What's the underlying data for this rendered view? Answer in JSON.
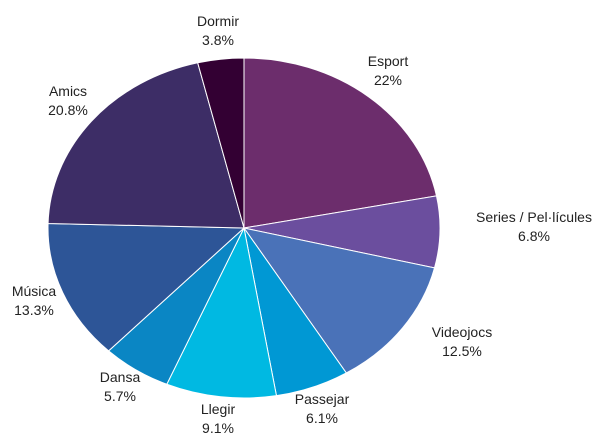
{
  "chart_data": {
    "type": "pie",
    "slices": [
      {
        "label": "Esport",
        "value": 22,
        "value_text": "22%",
        "color": "#6c2d6c"
      },
      {
        "label": "Series / Pel·lícules",
        "value": 6.8,
        "value_text": "6.8%",
        "color": "#6b4e9e"
      },
      {
        "label": "Videojocs",
        "value": 12.5,
        "value_text": "12.5%",
        "color": "#4a72b8"
      },
      {
        "label": "Passejar",
        "value": 6.1,
        "value_text": "6.1%",
        "color": "#0098d4"
      },
      {
        "label": "Llegir",
        "value": 9.1,
        "value_text": "9.1%",
        "color": "#00b9e2"
      },
      {
        "label": "Dansa",
        "value": 5.7,
        "value_text": "5.7%",
        "color": "#0a86c4"
      },
      {
        "label": "Música",
        "value": 13.3,
        "value_text": "13.3%",
        "color": "#2d5597"
      },
      {
        "label": "Amics",
        "value": 20.8,
        "value_text": "20.8%",
        "color": "#3d2d66"
      },
      {
        "label": "Dormir",
        "value": 3.8,
        "value_text": "3.8%",
        "color": "#330033"
      }
    ],
    "start_angle_deg": 0,
    "direction": "clockwise"
  }
}
